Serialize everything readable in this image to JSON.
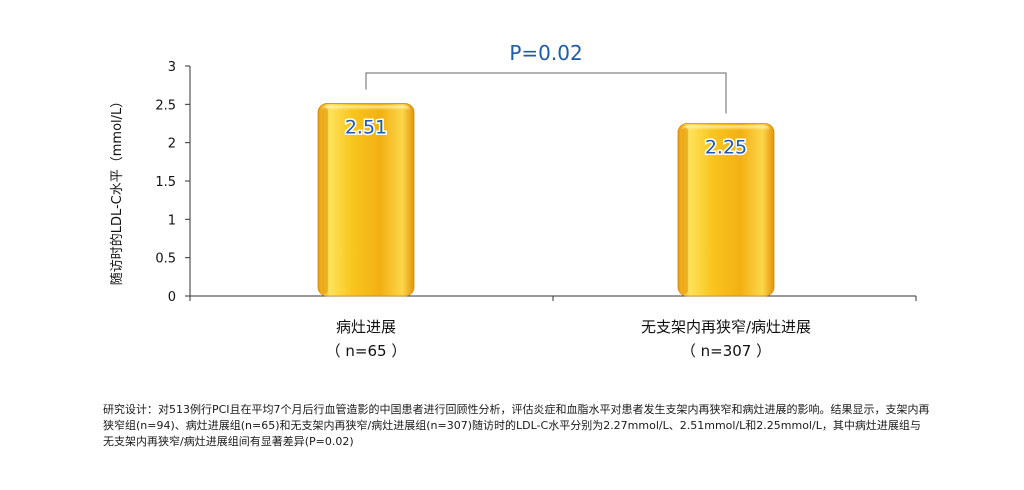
{
  "chart_data": {
    "type": "bar",
    "title": "",
    "xlabel": "",
    "ylabel": "随访时的LDL-C水平（mmol/L）",
    "ylim": [
      0,
      3
    ],
    "yticks": [
      "0",
      "0.5",
      "1",
      "1.5",
      "2",
      "2.5",
      "3"
    ],
    "categories": [
      {
        "name": "病灶进展",
        "n": "（ n=65 ）"
      },
      {
        "name": "无支架内再狭窄/病灶进展",
        "n": "（ n=307 ）"
      }
    ],
    "values": [
      2.51,
      2.25
    ],
    "value_labels": [
      "2.51",
      "2.25"
    ],
    "annotation": "P=0.02",
    "grid": false,
    "colors": {
      "bar_light": "#FFE873",
      "bar_mid": "#F7C21A",
      "bar_dark": "#E8A00E",
      "value_text": "#1F5BA8",
      "annotation_text": "#1F5BA8",
      "axis": "#333333",
      "bracket": "#666666"
    }
  },
  "caption": {
    "text": "研究设计：对513例行PCI且在平均7个月后行血管造影的中国患者进行回顾性分析，评估炎症和血脂水平对患者发生支架内再狭窄和病灶进展的影响。结果显示，支架内再狭窄组(n=94)、病灶进展组(n=65)和无支架内再狭窄/病灶进展组(n=307)随访时的LDL-C水平分别为2.27mmol/L、2.51mmol/L和2.25mmol/L，其中病灶进展组与无支架内再狭窄/病灶进展组间有显著差异(P=0.02)"
  }
}
